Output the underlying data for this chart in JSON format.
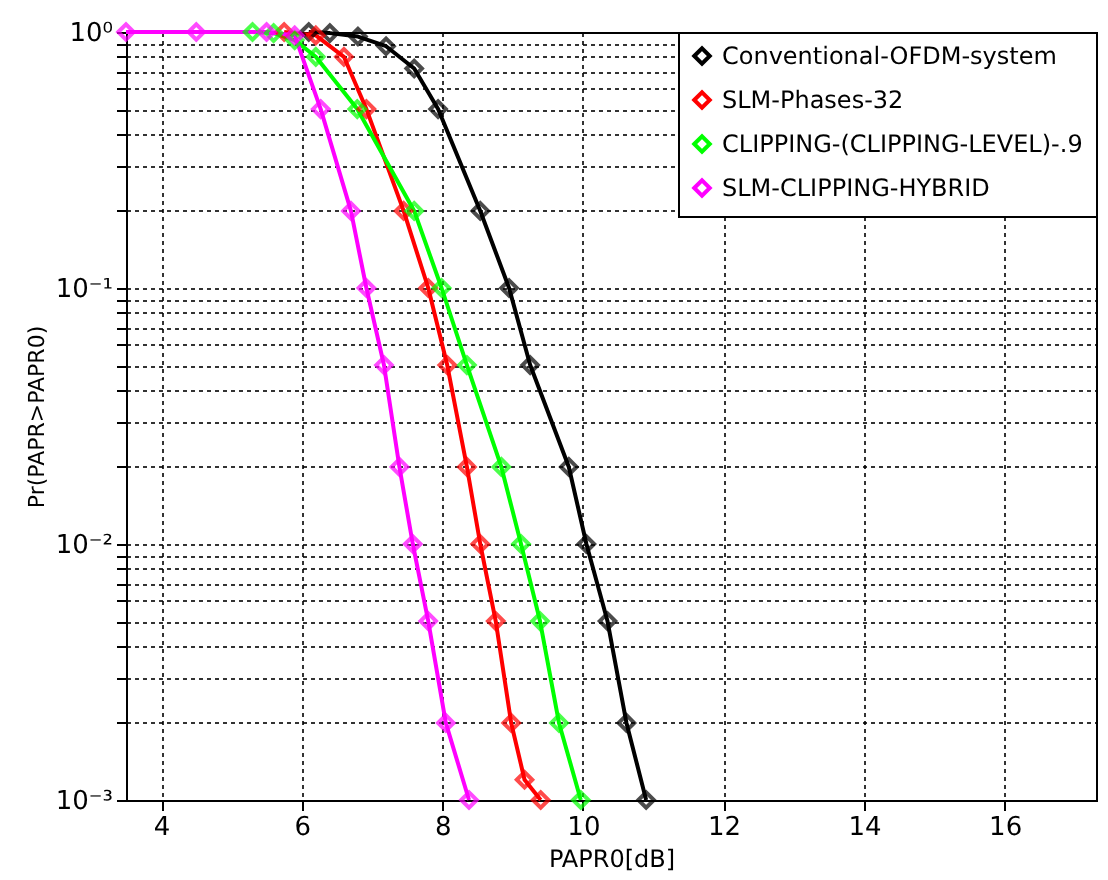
{
  "chart_data": {
    "type": "line",
    "xlabel": "PAPR0[dB]",
    "ylabel": "Pr(PAPR>PAPR0)",
    "log": "y",
    "grid": true,
    "legend": "top right",
    "marker": "diamond",
    "line_style": "solid",
    "xlim": [
      3.5,
      17.3
    ],
    "xticks": [
      4,
      6,
      8,
      10,
      12,
      14,
      16
    ],
    "ylim": [
      0.001,
      1
    ],
    "yticks": [
      {
        "value": 0.001,
        "label": "10⁻³"
      },
      {
        "value": 0.002,
        "label": null
      },
      {
        "value": 0.003,
        "label": null
      },
      {
        "value": 0.004,
        "label": null
      },
      {
        "value": 0.005,
        "label": null
      },
      {
        "value": 0.006,
        "label": null
      },
      {
        "value": 0.007,
        "label": null
      },
      {
        "value": 0.008,
        "label": null
      },
      {
        "value": 0.009,
        "label": null
      },
      {
        "value": 0.01,
        "label": "10⁻²"
      },
      {
        "value": 0.02,
        "label": null
      },
      {
        "value": 0.03,
        "label": null
      },
      {
        "value": 0.04,
        "label": null
      },
      {
        "value": 0.05,
        "label": null
      },
      {
        "value": 0.06,
        "label": null
      },
      {
        "value": 0.07,
        "label": null
      },
      {
        "value": 0.08,
        "label": null
      },
      {
        "value": 0.09,
        "label": null
      },
      {
        "value": 0.1,
        "label": "10⁻¹"
      },
      {
        "value": 0.2,
        "label": null
      },
      {
        "value": 0.3,
        "label": null
      },
      {
        "value": 0.4,
        "label": null
      },
      {
        "value": 0.5,
        "label": null
      },
      {
        "value": 0.6,
        "label": null
      },
      {
        "value": 0.7,
        "label": null
      },
      {
        "value": 0.8,
        "label": null
      },
      {
        "value": 0.9,
        "label": null
      },
      {
        "value": 1,
        "label": "10⁰"
      }
    ],
    "series": [
      {
        "name": "Conventional-OFDM-system",
        "color": "#000000",
        "x": [
          6.1,
          6.4,
          6.8,
          7.2,
          7.6,
          7.94,
          8.54,
          8.95,
          9.25,
          9.8,
          10.05,
          10.35,
          10.62,
          10.9
        ],
        "values": [
          1,
          0.99,
          0.96,
          0.88,
          0.72,
          0.5,
          0.2,
          0.1,
          0.05,
          0.02,
          0.01,
          0.005,
          0.002,
          0.001
        ]
      },
      {
        "name": "SLM-Phases-32",
        "color": "#ff0000",
        "x": [
          5.75,
          6.2,
          6.6,
          6.92,
          7.45,
          7.8,
          8.07,
          8.35,
          8.54,
          8.76,
          8.98,
          9.17,
          9.4
        ],
        "values": [
          1,
          0.97,
          0.8,
          0.5,
          0.2,
          0.1,
          0.05,
          0.02,
          0.01,
          0.005,
          0.002,
          0.0012,
          0.001
        ]
      },
      {
        "name": "CLIPPING-(CLIPPING-LEVEL)-.9",
        "color": "#00ff00",
        "x": [
          5.3,
          5.6,
          5.9,
          6.2,
          6.79,
          7.6,
          7.99,
          8.35,
          8.84,
          9.12,
          9.39,
          9.66,
          9.97
        ],
        "values": [
          1,
          0.99,
          0.93,
          0.8,
          0.5,
          0.2,
          0.1,
          0.05,
          0.02,
          0.01,
          0.005,
          0.002,
          0.001
        ]
      },
      {
        "name": "SLM-CLIPPING-HYBRID",
        "color": "#ff00ff",
        "x": [
          3.5,
          4.5,
          5.5,
          5.9,
          6.27,
          6.7,
          6.92,
          7.17,
          7.39,
          7.58,
          7.8,
          8.05,
          8.38
        ],
        "values": [
          1,
          1,
          1,
          0.97,
          0.5,
          0.2,
          0.1,
          0.05,
          0.02,
          0.01,
          0.005,
          0.002,
          0.001
        ]
      }
    ]
  }
}
